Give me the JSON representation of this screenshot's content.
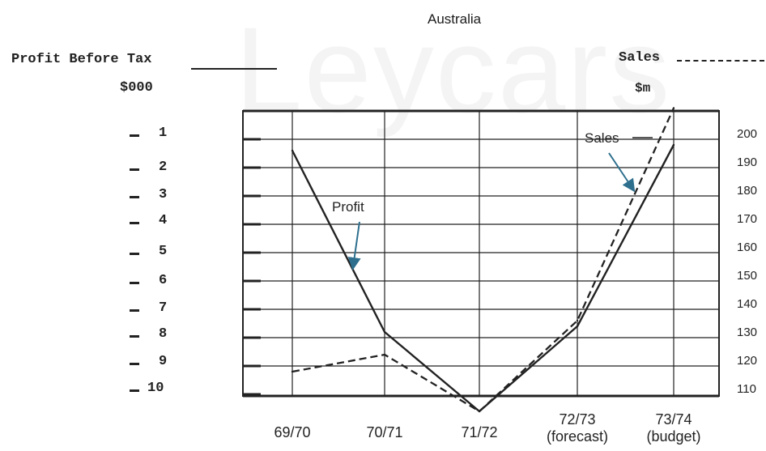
{
  "watermark": "Leycars",
  "chart_data": {
    "type": "line",
    "title": "Australia",
    "left_axis": {
      "title": "Profit Before Tax",
      "unit": "$000",
      "ticks": [
        "1",
        "2",
        "3",
        "4",
        "5",
        "6",
        "7",
        "8",
        "9",
        "10"
      ],
      "range": [
        10,
        1
      ]
    },
    "right_axis": {
      "title": "Sales",
      "unit": "$m",
      "ticks": [
        "200",
        "190",
        "180",
        "170",
        "160",
        "150",
        "140",
        "130",
        "120",
        "110"
      ],
      "range": [
        105,
        205
      ]
    },
    "categories": [
      "69/70",
      "70/71",
      "71/72",
      "72/73",
      "73/74"
    ],
    "category_sublabels": [
      "",
      "",
      "",
      "(forecast)",
      "(budget)"
    ],
    "series": [
      {
        "name": "Profit",
        "style": "solid",
        "axis": "left",
        "values": [
          1.4,
          7.8,
          10.6,
          7.6,
          1.2
        ]
      },
      {
        "name": "Sales",
        "style": "dashed",
        "axis": "right",
        "values": [
          118,
          124,
          104,
          136,
          211
        ]
      }
    ],
    "annotations": [
      "Profit",
      "Sales"
    ],
    "grid": true,
    "colors": {
      "ink": "#222222",
      "arrow": "#2e6f8e"
    }
  }
}
